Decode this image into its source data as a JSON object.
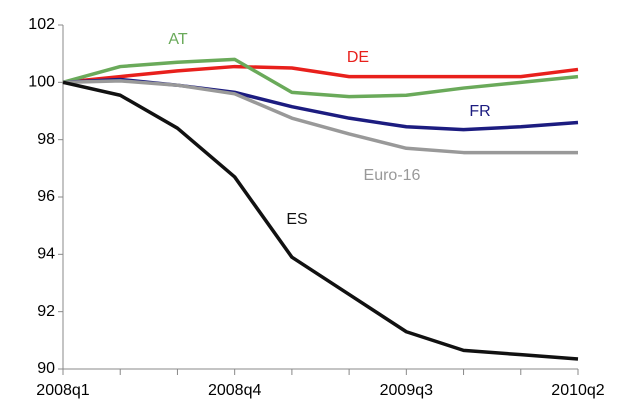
{
  "chart_data": {
    "type": "line",
    "categories": [
      "2008q1",
      null,
      null,
      "2008q4",
      null,
      null,
      "2009q3",
      null,
      null,
      "2010q2"
    ],
    "ylim": [
      90,
      102
    ],
    "yticks": [
      90,
      92,
      94,
      96,
      98,
      100,
      102
    ],
    "series": [
      {
        "name": "DE",
        "color": "#e8201c",
        "values": [
          100,
          100.2,
          100.4,
          100.55,
          100.5,
          100.2,
          100.2,
          100.2,
          100.2,
          100.45
        ]
      },
      {
        "name": "AT",
        "color": "#6aaa5a",
        "values": [
          100,
          100.55,
          100.7,
          100.8,
          99.65,
          99.5,
          99.55,
          99.8,
          100.0,
          100.2
        ]
      },
      {
        "name": "FR",
        "color": "#1c1c80",
        "values": [
          100,
          100.1,
          99.9,
          99.65,
          99.15,
          98.75,
          98.45,
          98.35,
          98.45,
          98.6
        ]
      },
      {
        "name": "Euro-16",
        "color": "#999999",
        "values": [
          100,
          100.05,
          99.9,
          99.6,
          98.75,
          98.2,
          97.7,
          97.55,
          97.55,
          97.55
        ]
      },
      {
        "name": "ES",
        "color": "#111111",
        "values": [
          100,
          99.55,
          98.4,
          96.7,
          93.9,
          92.6,
          91.3,
          90.65,
          90.5,
          90.35
        ]
      }
    ]
  }
}
